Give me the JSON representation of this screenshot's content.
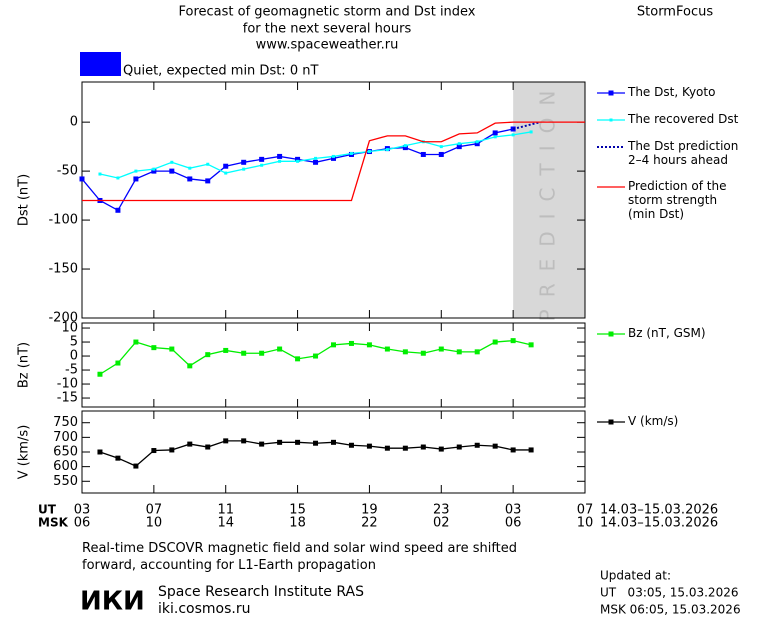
{
  "header": {
    "title_lines": [
      "Forecast of geomagnetic storm and Dst index",
      "for the next several hours",
      "www.spaceweather.ru"
    ],
    "brand": "StormFocus",
    "status": {
      "text": "Quiet, expected min Dst: 0 nT",
      "color": "#0000ff"
    }
  },
  "chart_data": [
    {
      "type": "line",
      "ylabel": "Dst (nT)",
      "xlim": [
        0,
        28
      ],
      "ylim": [
        -200,
        41
      ],
      "yticks": [
        0,
        -50,
        -100,
        -150,
        -200
      ],
      "prediction_band": [
        24,
        28
      ],
      "band_label": "PREDICTION",
      "series": [
        {
          "name": "The Dst, Kyoto",
          "color": "#0000ff",
          "marker": "square",
          "line_style": "solid",
          "x": [
            0,
            1,
            2,
            3,
            4,
            5,
            6,
            7,
            8,
            9,
            10,
            11,
            12,
            13,
            14,
            15,
            16,
            17,
            18,
            19,
            20,
            21,
            22,
            23,
            24
          ],
          "values": [
            -58,
            -80,
            -90,
            -58,
            -50,
            -50,
            -58,
            -60,
            -45,
            -41,
            -38,
            -35,
            -38,
            -41,
            -37,
            -33,
            -30,
            -27,
            -26,
            -33,
            -33,
            -25,
            -22,
            -11,
            -7
          ]
        },
        {
          "name": "The recovered Dst",
          "color": "#00ffff",
          "marker": "square-small",
          "line_style": "solid",
          "x": [
            1,
            2,
            3,
            4,
            5,
            6,
            7,
            8,
            9,
            10,
            11,
            12,
            13,
            14,
            15,
            16,
            17,
            18,
            19,
            20,
            21,
            22,
            23,
            24,
            25
          ],
          "values": [
            -53,
            -57,
            -50,
            -48,
            -41,
            -47,
            -43,
            -52,
            -48,
            -44,
            -40,
            -40,
            -37,
            -35,
            -32,
            -30,
            -28,
            -24,
            -20,
            -25,
            -22,
            -20,
            -15,
            -13,
            -10
          ]
        },
        {
          "name": "The Dst prediction\n2–4 hours ahead",
          "color": "#0000aa",
          "marker": "none",
          "line_style": "dotted",
          "x": [
            24,
            25.5
          ],
          "values": [
            -7,
            0
          ]
        },
        {
          "name": "Prediction of the\nstorm strength\n(min Dst)",
          "color": "#ff0000",
          "marker": "none",
          "line_style": "solid",
          "x": [
            0,
            15,
            16,
            17,
            18,
            19,
            20,
            21,
            22,
            23,
            24,
            28
          ],
          "values": [
            -80,
            -80,
            -19,
            -14,
            -14,
            -20,
            -20,
            -12,
            -11,
            -1,
            0,
            0
          ]
        }
      ]
    },
    {
      "type": "line",
      "ylabel": "Bz (nT)",
      "xlim": [
        0,
        28
      ],
      "ylim": [
        -18.2,
        11.8
      ],
      "yticks": [
        10,
        5,
        0,
        -5,
        -10,
        -15
      ],
      "series": [
        {
          "name": "Bz (nT, GSM)",
          "color": "#00ee00",
          "marker": "square",
          "line_style": "solid",
          "x": [
            1,
            2,
            3,
            4,
            5,
            6,
            7,
            8,
            9,
            10,
            11,
            12,
            13,
            14,
            15,
            16,
            17,
            18,
            19,
            20,
            21,
            22,
            23,
            24,
            25
          ],
          "values": [
            -6.5,
            -2.5,
            5,
            3,
            2.5,
            -3.5,
            0.5,
            2,
            1,
            1,
            2.5,
            -1,
            0,
            4,
            4.5,
            4,
            2.5,
            1.5,
            1,
            2.5,
            1.5,
            1.5,
            5,
            5.5,
            4
          ]
        }
      ]
    },
    {
      "type": "line",
      "ylabel": "V (km/s)",
      "xlim": [
        0,
        28
      ],
      "ylim": [
        510,
        790
      ],
      "yticks": [
        750,
        700,
        650,
        600,
        550
      ],
      "series": [
        {
          "name": "V (km/s)",
          "color": "#000000",
          "marker": "square",
          "line_style": "solid",
          "x": [
            1,
            2,
            3,
            4,
            5,
            6,
            7,
            8,
            9,
            10,
            11,
            12,
            13,
            14,
            15,
            16,
            17,
            18,
            19,
            20,
            21,
            22,
            23,
            24,
            25
          ],
          "values": [
            650,
            629,
            602,
            655,
            657,
            677,
            667,
            688,
            688,
            677,
            683,
            683,
            680,
            683,
            673,
            670,
            663,
            663,
            667,
            660,
            667,
            673,
            670,
            657,
            657
          ]
        }
      ],
      "x_label": "UT",
      "x2_label": "MSK",
      "xticks": [
        {
          "value": 0,
          "label": "03"
        },
        {
          "value": 4,
          "label": "07"
        },
        {
          "value": 8,
          "label": "11"
        },
        {
          "value": 12,
          "label": "15"
        },
        {
          "value": 16,
          "label": "19"
        },
        {
          "value": 20,
          "label": "23"
        },
        {
          "value": 24,
          "label": "03"
        },
        {
          "value": 28,
          "label": "07"
        }
      ],
      "x2ticks": [
        {
          "value": 0,
          "label": "06"
        },
        {
          "value": 4,
          "label": "10"
        },
        {
          "value": 8,
          "label": "14"
        },
        {
          "value": 12,
          "label": "18"
        },
        {
          "value": 16,
          "label": "22"
        },
        {
          "value": 20,
          "label": "02"
        },
        {
          "value": 24,
          "label": "06"
        },
        {
          "value": 28,
          "label": "10"
        }
      ],
      "x_range_label": "14.03–15.03.2026",
      "x2_range_label": "14.03–15.03.2026"
    }
  ],
  "footer": {
    "caption": "Real-time DSCOVR magnetic field and solar wind speed are shifted\nforward, accounting for L1-Earth propagation",
    "logo": "ИКИ",
    "institute": "Space Research Institute RAS",
    "site": "iki.cosmos.ru",
    "updated": "Updated at:",
    "updated_ut": "UT   03:05, 15.03.2026",
    "updated_msk": "MSK 06:05, 15.03.2026"
  }
}
